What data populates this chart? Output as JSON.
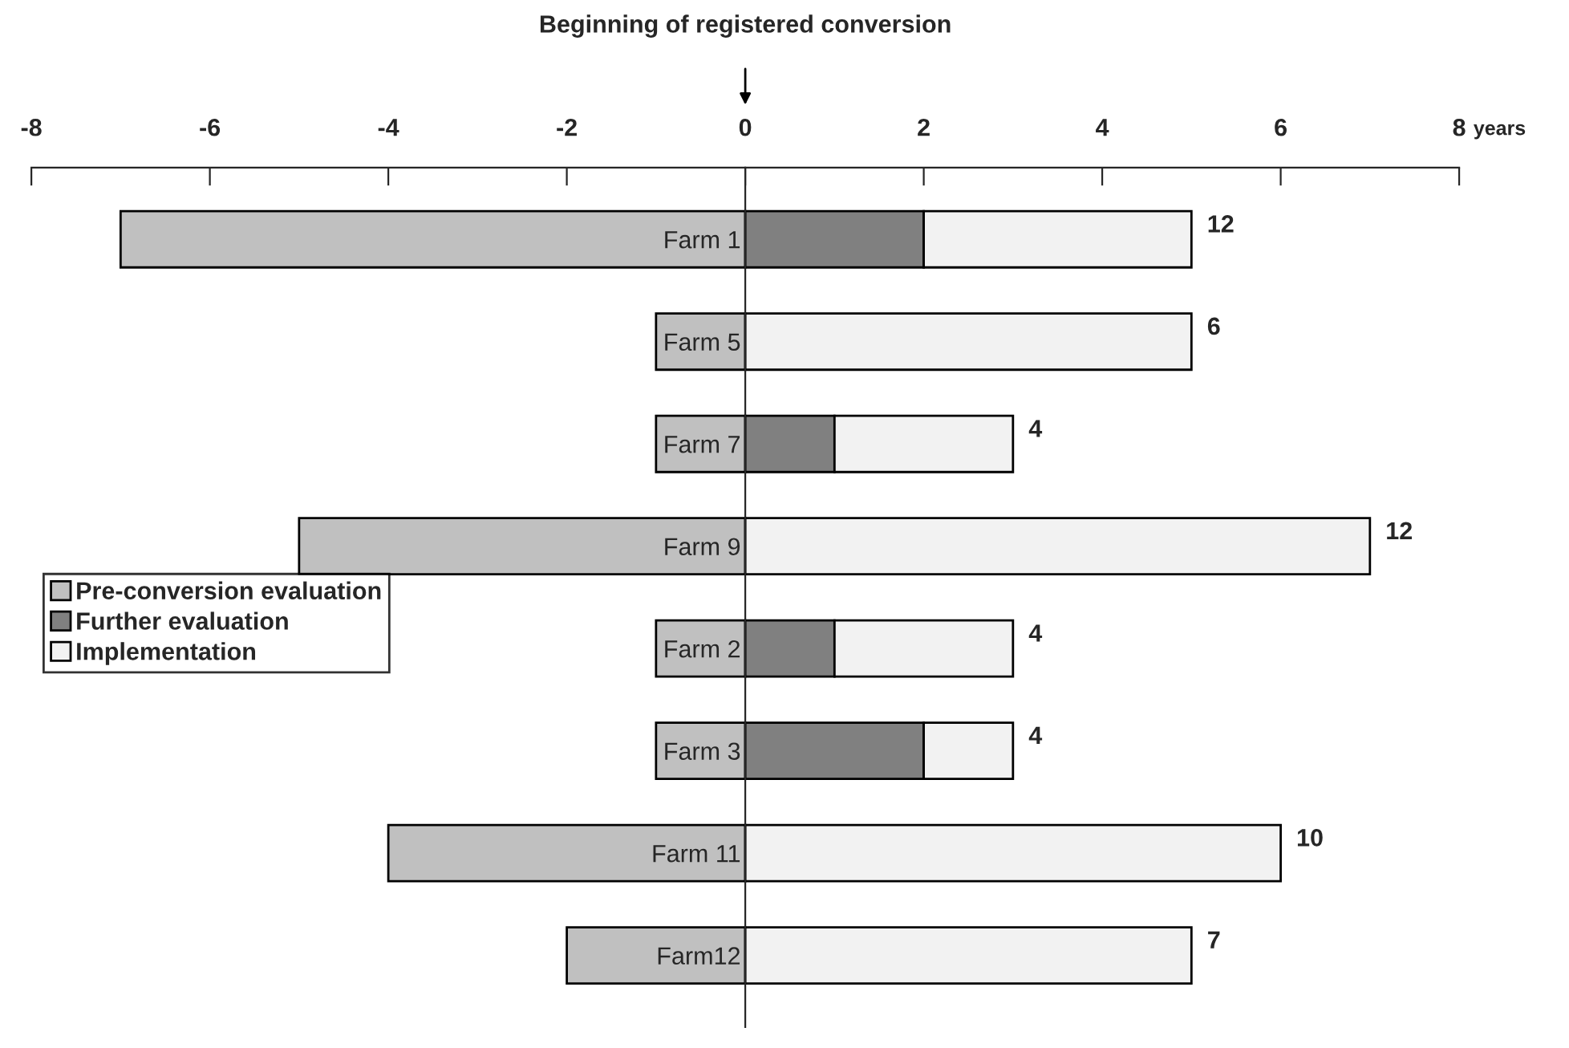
{
  "chart_data": {
    "type": "bar",
    "orientation": "horizontal",
    "stacked": true,
    "title": "Beginning of registered conversion",
    "xlabel": "years",
    "categories": [
      "Farm 1",
      "Farm 5",
      "Farm 7",
      "Farm 9",
      "Farm 2",
      "Farm 3",
      "Farm 11",
      "Farm12"
    ],
    "series": [
      {
        "name": "Pre-conversion evaluation",
        "color": "#c0c0c0",
        "values": [
          -7,
          -1,
          -1,
          -5,
          -1,
          -1,
          -4,
          -2
        ]
      },
      {
        "name": "Further evaluation",
        "color": "#808080",
        "values": [
          2,
          null,
          1,
          null,
          1,
          2,
          null,
          null
        ]
      },
      {
        "name": "Implementation",
        "color": "#f2f2f2",
        "values": [
          3,
          5,
          2,
          7,
          2,
          1,
          6,
          5
        ]
      }
    ],
    "xlim": [
      -8,
      8
    ],
    "xticks": [
      -8,
      -6,
      -4,
      -2,
      0,
      2,
      4,
      6,
      8
    ],
    "annotations": [
      {
        "text": "12",
        "x": 5,
        "y": "Farm 1"
      },
      {
        "text": "6",
        "x": 5,
        "y": "Farm 5"
      },
      {
        "text": "4",
        "x": 3,
        "y": "Farm 7"
      },
      {
        "text": "12",
        "x": 7,
        "y": "Farm 9"
      },
      {
        "text": "4",
        "x": 3,
        "y": "Farm 2"
      },
      {
        "text": "4",
        "x": 3,
        "y": "Farm 3"
      },
      {
        "text": "10",
        "x": 6,
        "y": "Farm 11"
      },
      {
        "text": "7",
        "x": 5,
        "y": "Farm12"
      }
    ],
    "legend": "left",
    "grid": false
  }
}
